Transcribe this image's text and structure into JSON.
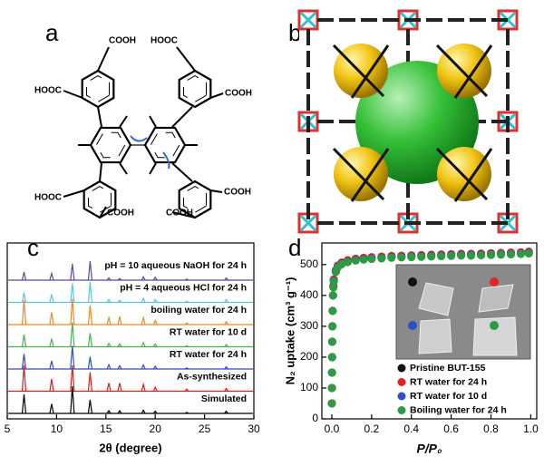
{
  "panels": [
    "a",
    "b",
    "c",
    "d"
  ],
  "panel_a": {
    "labels": [
      "COOH",
      "HOOC",
      "HOOC",
      "COOH",
      "HOOC",
      "COOH",
      "COOH",
      "COOH"
    ]
  },
  "chart_data": [
    {
      "type": "xrd",
      "xlabel": "2θ (degree)",
      "xlim": [
        5,
        30
      ],
      "xticks": [
        5,
        10,
        15,
        20,
        25,
        30
      ],
      "x": [
        6.7,
        9.5,
        11.6,
        13.4,
        15.3,
        16.4,
        18.8,
        20.0,
        23.2,
        27.2
      ],
      "series": [
        {
          "name": "pH = 10 aqueous NaOH for 24 h",
          "color": "#5a4a9c",
          "values": [
            30,
            25,
            60,
            70,
            8,
            6,
            12,
            10,
            4,
            8
          ]
        },
        {
          "name": "pH = 4 aqueous HCl for 24 h",
          "color": "#58c6dd",
          "values": [
            35,
            30,
            70,
            75,
            10,
            8,
            15,
            10,
            4,
            10
          ]
        },
        {
          "name": "boiling water for 24 h",
          "color": "#ef8a22",
          "values": [
            90,
            45,
            95,
            70,
            25,
            30,
            25,
            15,
            6,
            10
          ]
        },
        {
          "name": "RT water for 10 d",
          "color": "#4caf50",
          "values": [
            45,
            30,
            90,
            50,
            12,
            10,
            15,
            10,
            4,
            8
          ]
        },
        {
          "name": "RT water for 24 h",
          "color": "#2f4fbf",
          "values": [
            55,
            30,
            85,
            45,
            15,
            12,
            15,
            10,
            4,
            8
          ]
        },
        {
          "name": "As-synthesized",
          "color": "#d42020",
          "values": [
            95,
            45,
            95,
            70,
            30,
            30,
            25,
            15,
            8,
            10
          ]
        },
        {
          "name": "Simulated",
          "color": "#000000",
          "values": [
            70,
            35,
            100,
            50,
            10,
            10,
            12,
            8,
            4,
            8
          ]
        }
      ]
    },
    {
      "type": "scatter",
      "xlabel": "P/P₀",
      "ylabel": "N₂ uptake (cm³ g⁻¹)",
      "xlim": [
        -0.05,
        1.03
      ],
      "ylim": [
        0,
        570
      ],
      "xticks": [
        {
          "value": 0,
          "label": "0.0"
        },
        {
          "value": 0.2,
          "label": "0.2"
        },
        {
          "value": 0.4,
          "label": "0.4"
        },
        {
          "value": 0.6,
          "label": "0.6"
        },
        {
          "value": 0.8,
          "label": "0.8"
        },
        {
          "value": 1,
          "label": "1.0"
        }
      ],
      "yticks": [
        0,
        100,
        200,
        300,
        400,
        500
      ],
      "legend": "lower right",
      "x": [
        0.0002,
        0.0005,
        0.001,
        0.0015,
        0.002,
        0.003,
        0.004,
        0.006,
        0.008,
        0.01,
        0.02,
        0.03,
        0.05,
        0.08,
        0.12,
        0.16,
        0.2,
        0.25,
        0.3,
        0.35,
        0.4,
        0.45,
        0.5,
        0.55,
        0.6,
        0.65,
        0.7,
        0.75,
        0.8,
        0.85,
        0.9,
        0.95,
        0.99
      ],
      "series": [
        {
          "name": "Pristine BUT-155",
          "color": "#111111",
          "values": [
            50,
            100,
            150,
            200,
            250,
            300,
            350,
            400,
            430,
            450,
            480,
            495,
            505,
            512,
            517,
            520,
            522,
            524,
            526,
            527,
            528,
            529,
            530,
            531,
            532,
            533,
            533,
            534,
            535,
            536,
            537,
            538,
            540
          ]
        },
        {
          "name": "RT water for 24 h",
          "color": "#e02424",
          "values": [
            50,
            100,
            150,
            200,
            250,
            300,
            350,
            400,
            432,
            452,
            482,
            497,
            507,
            514,
            519,
            522,
            524,
            526,
            528,
            529,
            530,
            531,
            532,
            533,
            534,
            535,
            535,
            536,
            537,
            538,
            539,
            540,
            542
          ]
        },
        {
          "name": "RT water for 10 d",
          "color": "#3050c0",
          "values": [
            50,
            100,
            150,
            200,
            250,
            300,
            350,
            400,
            428,
            448,
            478,
            493,
            503,
            510,
            515,
            518,
            520,
            522,
            524,
            525,
            526,
            527,
            528,
            529,
            530,
            531,
            531,
            532,
            533,
            534,
            535,
            536,
            538
          ]
        },
        {
          "name": "Boiling water for 24 h",
          "color": "#2e9a44",
          "values": [
            50,
            100,
            150,
            200,
            250,
            300,
            350,
            400,
            426,
            446,
            476,
            491,
            501,
            508,
            513,
            516,
            518,
            520,
            522,
            523,
            524,
            525,
            526,
            527,
            528,
            529,
            529,
            530,
            531,
            532,
            533,
            534,
            536
          ]
        }
      ]
    }
  ]
}
